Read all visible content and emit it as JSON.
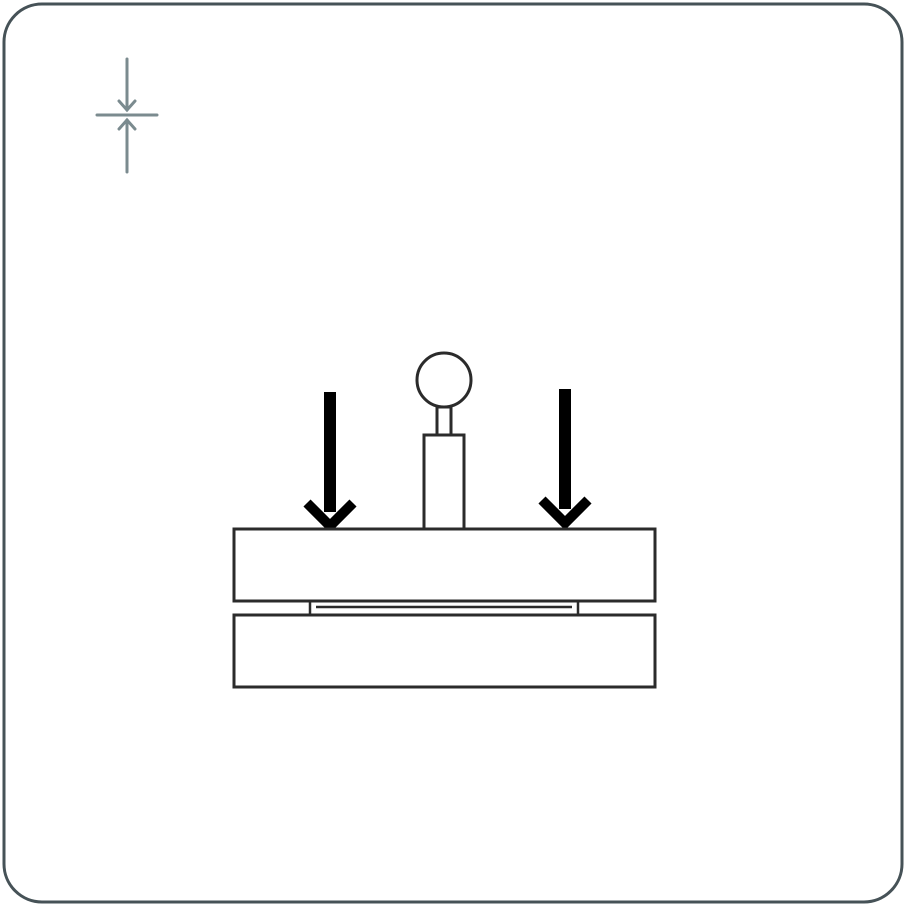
{
  "colors": {
    "frame": "#465257",
    "icon": "#7b8b8f",
    "outline": "#2b2b2b",
    "arrow": "#000000",
    "background": "#ffffff"
  },
  "icons": {
    "corner": "compress-gap-icon",
    "press_arrows": "down-arrow-icon",
    "handle": "knob-icon"
  }
}
